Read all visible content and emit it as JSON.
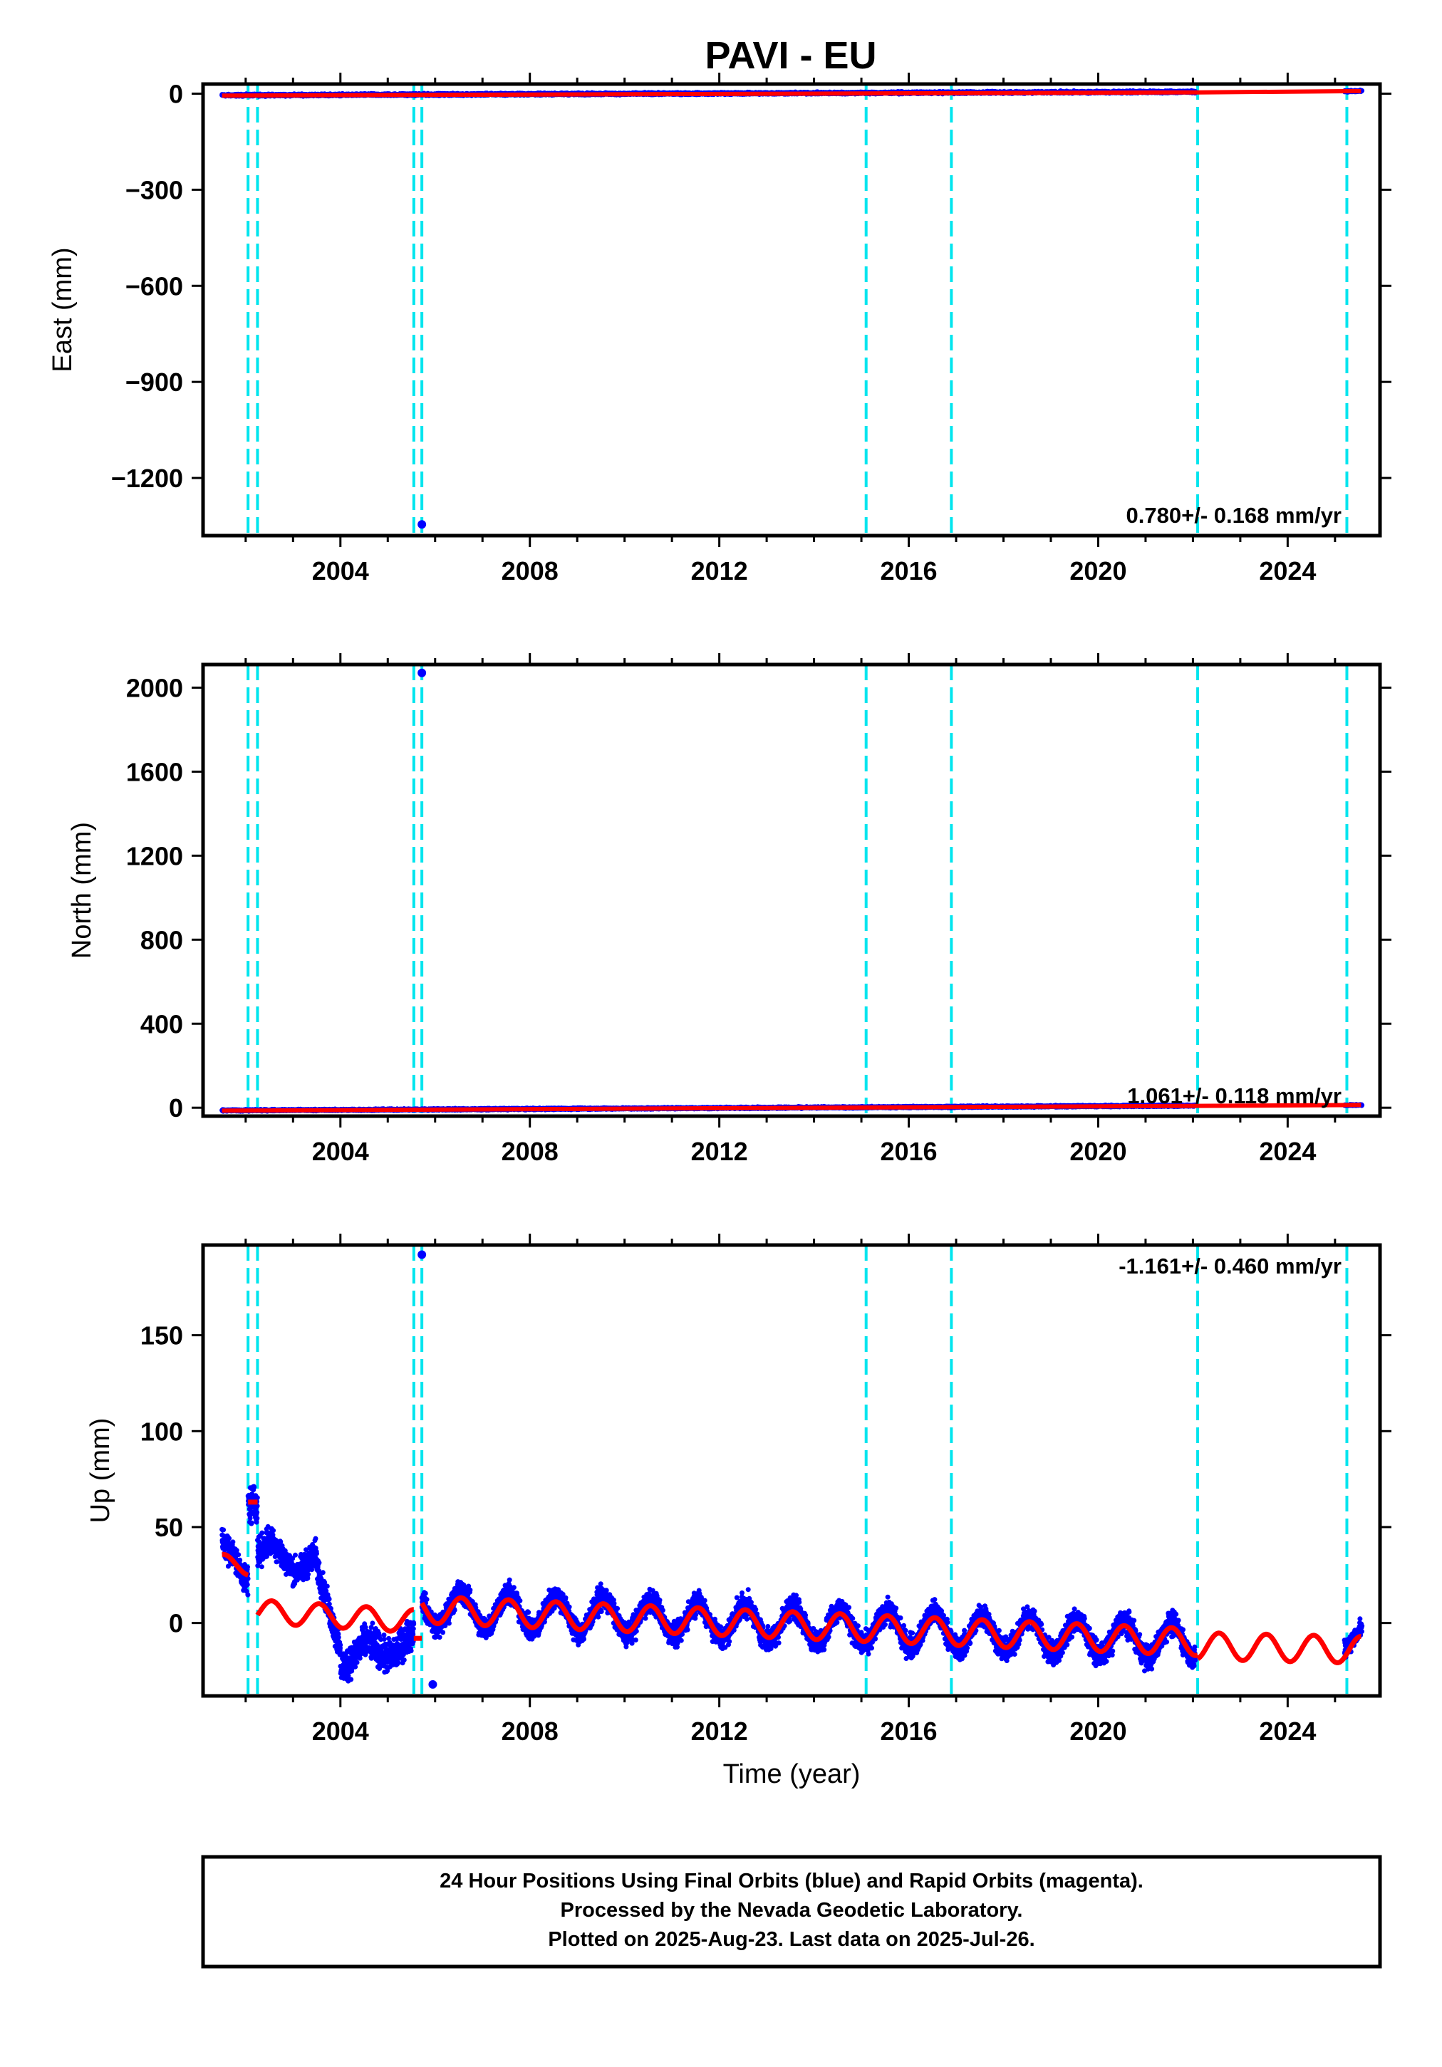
{
  "title": "PAVI - EU",
  "colors": {
    "final_orbits": "#0000ff",
    "model": "#ff0000",
    "offsets": "#00e5ee",
    "frame": "#000000"
  },
  "chart_data": [
    {
      "type": "scatter",
      "panel": "east",
      "ylabel": "East (mm)",
      "xlim": [
        2001.1,
        2025.95
      ],
      "ylim": [
        -1380,
        30
      ],
      "x_ticks": [
        2004,
        2008,
        2012,
        2016,
        2020,
        2024
      ],
      "y_ticks": [
        0,
        -300,
        -600,
        -900,
        -1200
      ],
      "rate": "0.780+/- 0.168 mm/yr",
      "offset_lines": [
        2002.05,
        2002.25,
        2005.55,
        2005.72,
        2015.1,
        2016.9,
        2022.1,
        2025.25
      ],
      "final_series": {
        "x_start": 2001.5,
        "x_end": 2022.05,
        "y_start": -5,
        "y_end": 6,
        "noise": 2.5
      },
      "final_series_2": {
        "x_start": 2025.2,
        "x_end": 2025.57,
        "y_start": 7,
        "y_end": 8,
        "noise": 2
      },
      "outliers": [
        {
          "x": 2005.72,
          "y": -1345
        }
      ],
      "model": [
        [
          2001.5,
          -6
        ],
        [
          2022.1,
          4
        ],
        [
          2025.55,
          8
        ]
      ]
    },
    {
      "type": "scatter",
      "panel": "north",
      "ylabel": "North (mm)",
      "xlim": [
        2001.1,
        2025.95
      ],
      "ylim": [
        -40,
        2110
      ],
      "x_ticks": [
        2004,
        2008,
        2012,
        2016,
        2020,
        2024
      ],
      "y_ticks": [
        0,
        400,
        800,
        1200,
        1600,
        2000
      ],
      "rate": "1.061+/- 0.118 mm/yr",
      "offset_lines": [
        2002.05,
        2002.25,
        2005.55,
        2005.72,
        2015.1,
        2016.9,
        2022.1,
        2025.25
      ],
      "final_series": {
        "x_start": 2001.5,
        "x_end": 2022.05,
        "y_start": -13,
        "y_end": 10,
        "noise": 3
      },
      "final_series_2": {
        "x_start": 2025.2,
        "x_end": 2025.57,
        "y_start": 12,
        "y_end": 13,
        "noise": 2
      },
      "outliers": [
        {
          "x": 2005.72,
          "y": 2070
        }
      ],
      "model": [
        [
          2001.5,
          -14
        ],
        [
          2022.1,
          9
        ],
        [
          2025.55,
          13
        ]
      ]
    },
    {
      "type": "scatter",
      "panel": "up",
      "ylabel": "Up (mm)",
      "xlabel": "Time (year)",
      "xlim": [
        2001.1,
        2025.95
      ],
      "ylim": [
        -38,
        197
      ],
      "x_ticks": [
        2004,
        2008,
        2012,
        2016,
        2020,
        2024
      ],
      "y_ticks": [
        0,
        50,
        100,
        150
      ],
      "rate": "-1.161+/- 0.460 mm/yr",
      "offset_lines": [
        2002.05,
        2002.25,
        2005.55,
        2005.72,
        2015.1,
        2016.9,
        2022.1,
        2025.25
      ],
      "outliers": [
        {
          "x": 2005.72,
          "y": 192
        },
        {
          "x": 2005.95,
          "y": -32
        }
      ],
      "final_segments": [
        {
          "x_start": 2001.5,
          "x_end": 2002.05,
          "y_start": 36,
          "y_end": 28,
          "amp": 6,
          "noise": 6
        },
        {
          "x_start": 2002.05,
          "x_end": 2002.25,
          "y_start": 62,
          "y_end": 62,
          "amp": 0,
          "noise": 8
        },
        {
          "x_start": 2002.25,
          "x_end": 2003.5,
          "y_start": 38,
          "y_end": 30,
          "amp": 6,
          "noise": 6
        },
        {
          "x_start": 2003.5,
          "x_end": 2004.0,
          "y_start": 30,
          "y_end": -15,
          "amp": 0,
          "noise": 6
        },
        {
          "x_start": 2004.0,
          "x_end": 2005.55,
          "y_start": -18,
          "y_end": -10,
          "amp": 5,
          "noise": 7
        },
        {
          "x_start": 2005.72,
          "x_end": 2022.05,
          "y_start": 8,
          "y_end": -10,
          "amp": 9,
          "noise": 5
        },
        {
          "x_start": 2025.2,
          "x_end": 2025.57,
          "y_start": -14,
          "y_end": -2,
          "amp": 0,
          "noise": 4
        }
      ],
      "model_segments": [
        {
          "x_start": 2001.5,
          "x_end": 2002.05,
          "y_start": 32,
          "y_end": 29,
          "amp": 4
        },
        {
          "x_start": 2002.05,
          "x_end": 2002.25,
          "y_start": 63,
          "y_end": 63,
          "amp": 0
        },
        {
          "x_start": 2002.25,
          "x_end": 2005.55,
          "y_start": 6,
          "y_end": 1,
          "amp": 6
        },
        {
          "x_start": 2005.55,
          "x_end": 2005.72,
          "y_start": -8,
          "y_end": -8,
          "amp": 0
        },
        {
          "x_start": 2005.72,
          "x_end": 2022.1,
          "y_start": 7,
          "y_end": -10,
          "amp": 7
        },
        {
          "x_start": 2022.1,
          "x_end": 2025.55,
          "y_start": -12,
          "y_end": -14,
          "amp": 7
        }
      ]
    }
  ],
  "footer": {
    "line1": "24 Hour Positions Using Final Orbits (blue) and Rapid Orbits (magenta).",
    "line2": "Processed by the Nevada Geodetic Laboratory.",
    "line3": "Plotted on 2025-Aug-23. Last data on 2025-Jul-26."
  }
}
